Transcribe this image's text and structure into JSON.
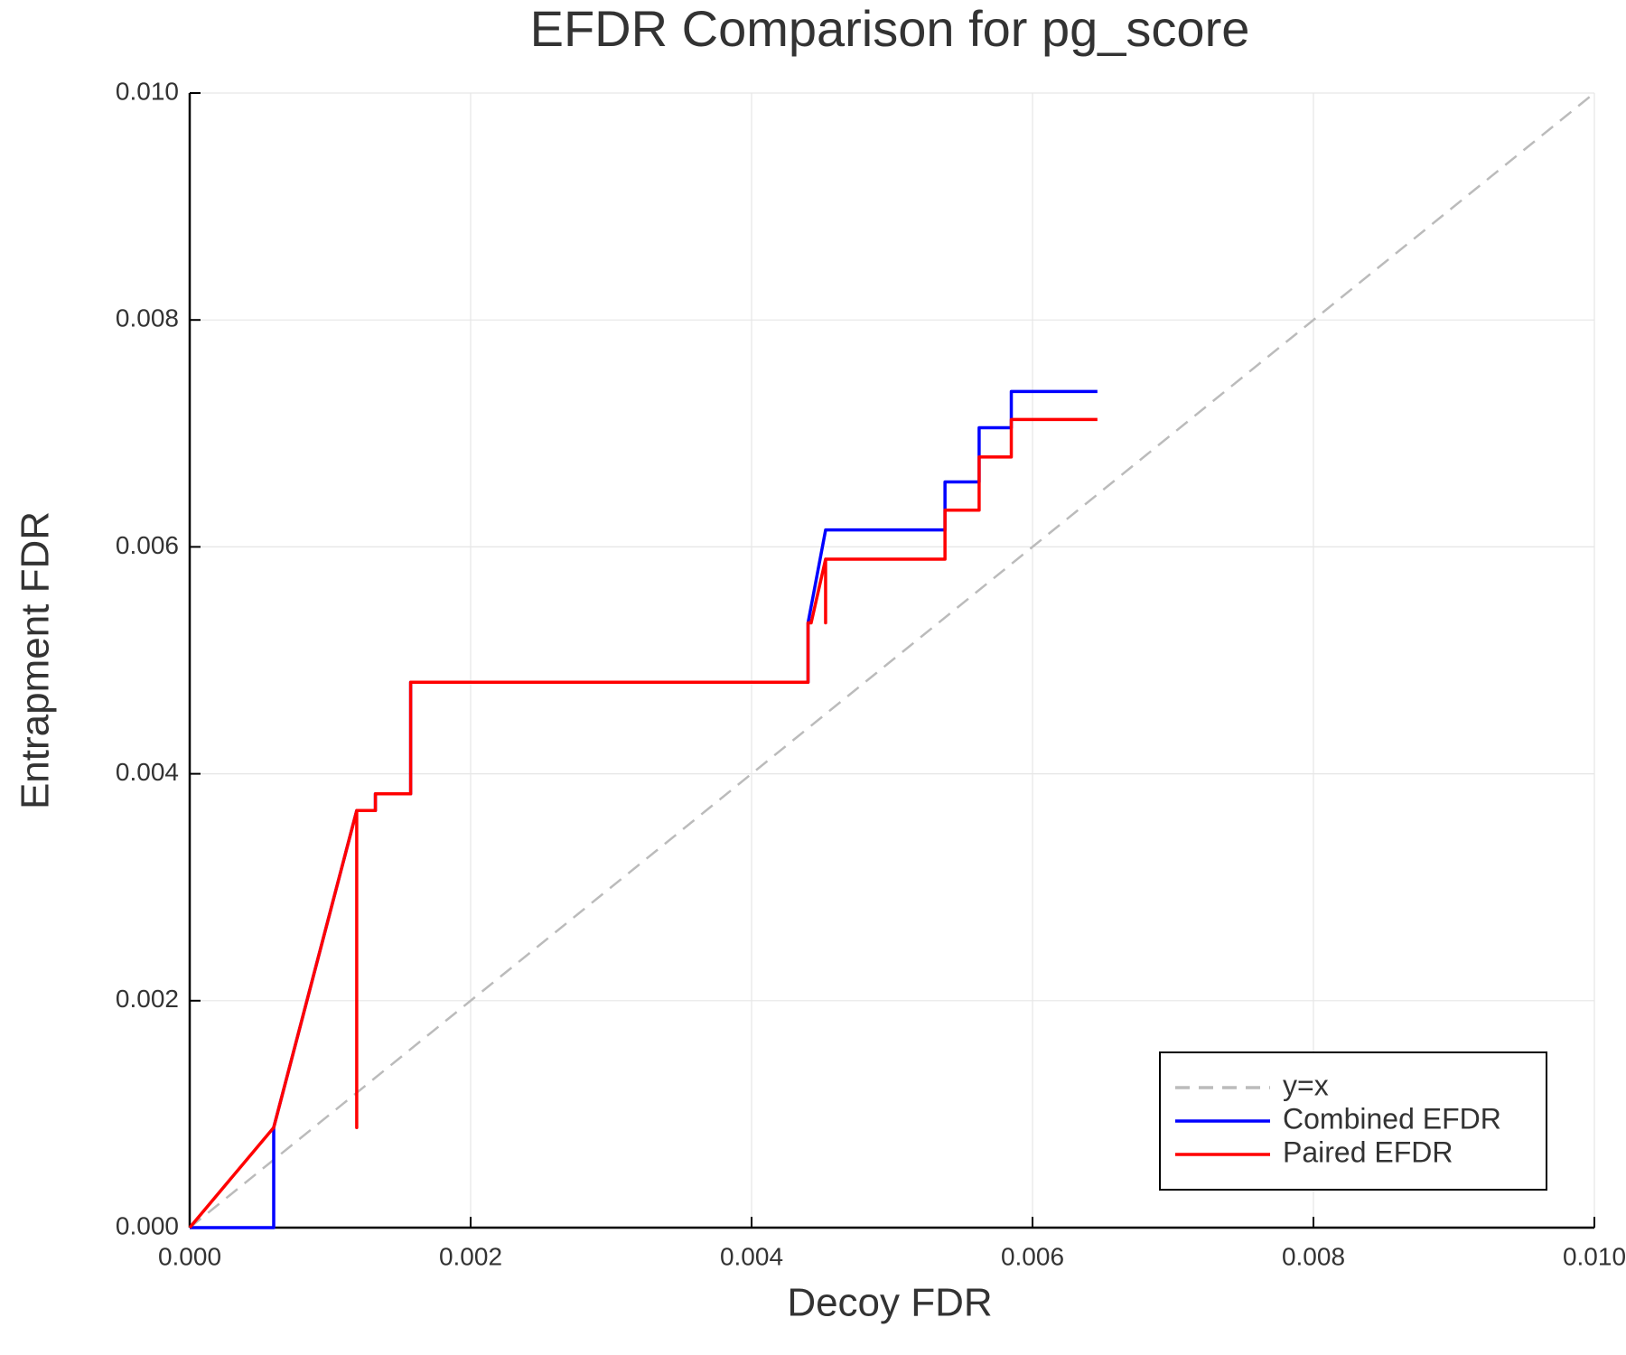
{
  "chart_data": {
    "type": "line",
    "title": "EFDR Comparison for pg_score",
    "x_label": "Decoy FDR",
    "y_label": "Entrapment FDR",
    "xlim": [
      0,
      0.01
    ],
    "ylim": [
      0,
      0.01
    ],
    "xticks": [
      {
        "value": 0,
        "label": "0.000"
      },
      0.002,
      0.004,
      0.006,
      0.008,
      {
        "value": 0.01,
        "label": "0.010"
      }
    ],
    "yticks": [
      {
        "value": 0,
        "label": "0.000"
      },
      0.002,
      0.004,
      0.006,
      0.008,
      {
        "value": 0.01,
        "label": "0.010"
      }
    ],
    "grid": true,
    "legend": "lower right",
    "series": [
      {
        "name": "y=x",
        "color": "#bbbbbb",
        "dash": true,
        "x": [
          0,
          0.01
        ],
        "values": [
          0,
          0.01
        ]
      },
      {
        "name": "Combined EFDR",
        "color": "#0000ff",
        "x": [
          0,
          0.000598,
          0.000598,
          0.001189,
          0.001189,
          0.001322,
          0.001322,
          0.001573,
          0.001573,
          0.004402,
          0.004402,
          0.004527,
          0.005377,
          0.005377,
          0.00562,
          0.00562,
          0.005849,
          0.005849,
          0.006462
        ],
        "values": [
          0,
          0,
          0.000882,
          0.003676,
          0.003676,
          0.003676,
          0.003824,
          0.003824,
          0.004807,
          0.004807,
          0.00533,
          0.006149,
          0.006149,
          0.006572,
          0.006572,
          0.00705,
          0.00705,
          0.00737,
          0.00737
        ]
      },
      {
        "name": "Paired EFDR",
        "color": "#ff0000",
        "x": [
          0,
          0.000598,
          0.001189,
          0.001189,
          0.001189,
          0.001322,
          0.001322,
          0.001573,
          0.001573,
          0.004402,
          0.004402,
          0.004424,
          0.004527,
          0.004527,
          0.004527,
          0.005377,
          0.005377,
          0.00562,
          0.00562,
          0.005849,
          0.005849,
          0.006462
        ],
        "values": [
          0,
          0.000882,
          0.003676,
          0.000882,
          0.003676,
          0.003676,
          0.003824,
          0.003824,
          0.004807,
          0.004807,
          0.00533,
          0.00533,
          0.005892,
          0.00533,
          0.005892,
          0.005892,
          0.006324,
          0.006324,
          0.006792,
          0.006792,
          0.007123,
          0.007123
        ]
      }
    ]
  }
}
